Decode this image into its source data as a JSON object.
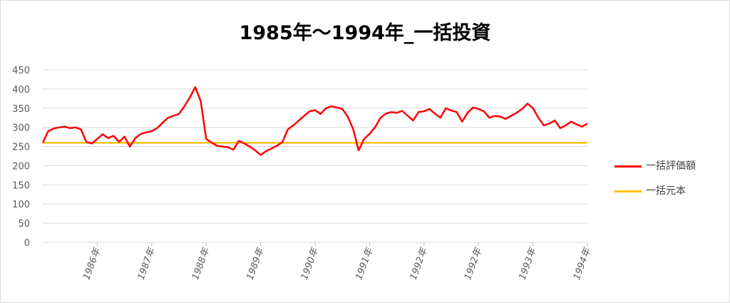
{
  "chart_data": {
    "type": "line",
    "title": "1985年～1994年_一括投資",
    "xlabel": "",
    "ylabel": "",
    "ylim": [
      0,
      450
    ],
    "yticks": [
      0,
      50,
      100,
      150,
      200,
      250,
      300,
      350,
      400,
      450
    ],
    "xticks": [
      "1986年",
      "1987年",
      "1988年",
      "1989年",
      "1990年",
      "1991年",
      "1992年",
      "1992年",
      "1993年",
      "1994年"
    ],
    "grid": true,
    "legend_position": "right",
    "series": [
      {
        "name": "一括評価額",
        "color": "#ff0000",
        "x": [
          0,
          0.5,
          1,
          2,
          3,
          4,
          5,
          6,
          7,
          8,
          9,
          10,
          11,
          12,
          13,
          14,
          15,
          16,
          17,
          18,
          19,
          20,
          21,
          22,
          23,
          24,
          25,
          26,
          27,
          28,
          29,
          30,
          31,
          32,
          33,
          34,
          35,
          36,
          37,
          38,
          39,
          40,
          41,
          42,
          43,
          44,
          45,
          46,
          47,
          48,
          49,
          50,
          51,
          52,
          53,
          54,
          55,
          56,
          57,
          58,
          59,
          60,
          61,
          62,
          63,
          64,
          65,
          66,
          67,
          68,
          69,
          70,
          71,
          72,
          73,
          74,
          75,
          76,
          77,
          78,
          79,
          80,
          81,
          82,
          83,
          84,
          85,
          86,
          87,
          88,
          89,
          90,
          91,
          92,
          93,
          94,
          95,
          96,
          97,
          98,
          99,
          100
        ],
        "values": [
          260,
          275,
          290,
          297,
          300,
          302,
          298,
          300,
          295,
          262,
          258,
          270,
          282,
          272,
          278,
          262,
          276,
          250,
          272,
          283,
          287,
          290,
          298,
          312,
          325,
          330,
          335,
          355,
          378,
          405,
          368,
          270,
          260,
          252,
          250,
          248,
          242,
          265,
          258,
          250,
          240,
          228,
          238,
          245,
          252,
          262,
          295,
          305,
          318,
          330,
          342,
          345,
          335,
          350,
          355,
          352,
          348,
          328,
          295,
          240,
          270,
          283,
          300,
          325,
          336,
          340,
          338,
          343,
          330,
          318,
          340,
          342,
          348,
          336,
          325,
          350,
          344,
          340,
          315,
          338,
          352,
          348,
          342,
          325,
          330,
          328,
          322,
          330,
          338,
          348,
          362,
          350,
          325,
          305,
          310,
          318,
          298,
          305,
          315,
          308,
          302,
          310
        ]
      },
      {
        "name": "一括元本",
        "color": "#ffc000",
        "x": [
          0,
          100
        ],
        "values": [
          260,
          260
        ]
      }
    ]
  }
}
